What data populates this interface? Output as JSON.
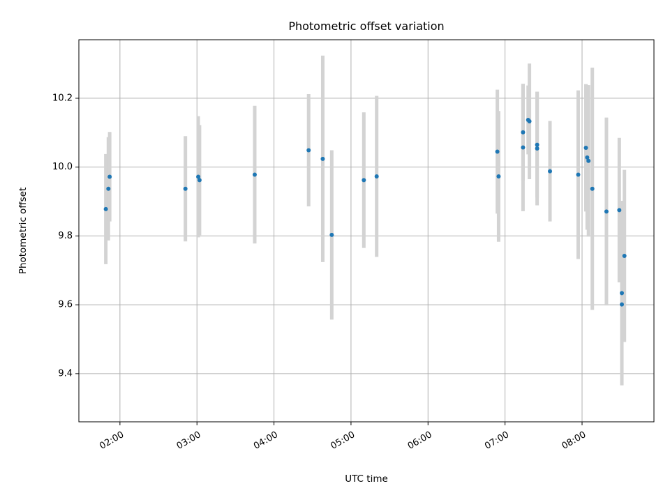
{
  "chart_data": {
    "type": "scatter",
    "title": "Photometric offset variation",
    "xlabel": "UTC time",
    "ylabel": "Photometric offset",
    "x_tick_labels": [
      "02:00",
      "03:00",
      "04:00",
      "05:00",
      "06:00",
      "07:00",
      "08:00"
    ],
    "y_ticks": [
      9.4,
      9.6,
      9.8,
      10.0,
      10.2
    ],
    "y_tick_labels": [
      "9.4",
      "9.6",
      "9.8",
      "10.0",
      "10.2"
    ],
    "xlim": [
      "01:28",
      "08:56"
    ],
    "ylim": [
      9.26,
      10.37
    ],
    "grid": true,
    "colors": {
      "marker": "#1f77b4",
      "errorbar": "#d3d3d3",
      "grid": "#b0b0b0"
    },
    "points": [
      {
        "t": "01:49",
        "y": 9.878,
        "err": 0.16
      },
      {
        "t": "01:51",
        "y": 9.937,
        "err": 0.15
      },
      {
        "t": "01:52",
        "y": 9.972,
        "err": 0.13
      },
      {
        "t": "02:51",
        "y": 9.937,
        "err": 0.153
      },
      {
        "t": "03:01",
        "y": 9.972,
        "err": 0.176
      },
      {
        "t": "03:02",
        "y": 9.962,
        "err": 0.16
      },
      {
        "t": "03:45",
        "y": 9.978,
        "err": 0.2
      },
      {
        "t": "04:27",
        "y": 10.049,
        "err": 0.163
      },
      {
        "t": "04:38",
        "y": 10.024,
        "err": 0.3
      },
      {
        "t": "04:45",
        "y": 9.803,
        "err": 0.246
      },
      {
        "t": "05:10",
        "y": 9.962,
        "err": 0.197
      },
      {
        "t": "05:20",
        "y": 9.973,
        "err": 0.234
      },
      {
        "t": "06:54",
        "y": 10.045,
        "err": 0.18
      },
      {
        "t": "06:55",
        "y": 9.973,
        "err": 0.19
      },
      {
        "t": "07:14",
        "y": 10.101,
        "err": 0.141
      },
      {
        "t": "07:14",
        "y": 10.057,
        "err": 0.185
      },
      {
        "t": "07:18",
        "y": 10.137,
        "err": 0.1
      },
      {
        "t": "07:19",
        "y": 10.133,
        "err": 0.168
      },
      {
        "t": "07:25",
        "y": 10.065,
        "err": 0.154
      },
      {
        "t": "07:25",
        "y": 10.054,
        "err": 0.165
      },
      {
        "t": "07:35",
        "y": 9.988,
        "err": 0.146
      },
      {
        "t": "07:57",
        "y": 9.978,
        "err": 0.245
      },
      {
        "t": "08:03",
        "y": 10.056,
        "err": 0.185
      },
      {
        "t": "08:04",
        "y": 10.028,
        "err": 0.21
      },
      {
        "t": "08:05",
        "y": 10.018,
        "err": 0.22
      },
      {
        "t": "08:08",
        "y": 9.937,
        "err": 0.352
      },
      {
        "t": "08:19",
        "y": 9.871,
        "err": 0.273
      },
      {
        "t": "08:29",
        "y": 9.875,
        "err": 0.21
      },
      {
        "t": "08:31",
        "y": 9.634,
        "err": 0.268
      },
      {
        "t": "08:31",
        "y": 9.601,
        "err": 0.235
      },
      {
        "t": "08:33",
        "y": 9.742,
        "err": 0.25
      }
    ]
  }
}
